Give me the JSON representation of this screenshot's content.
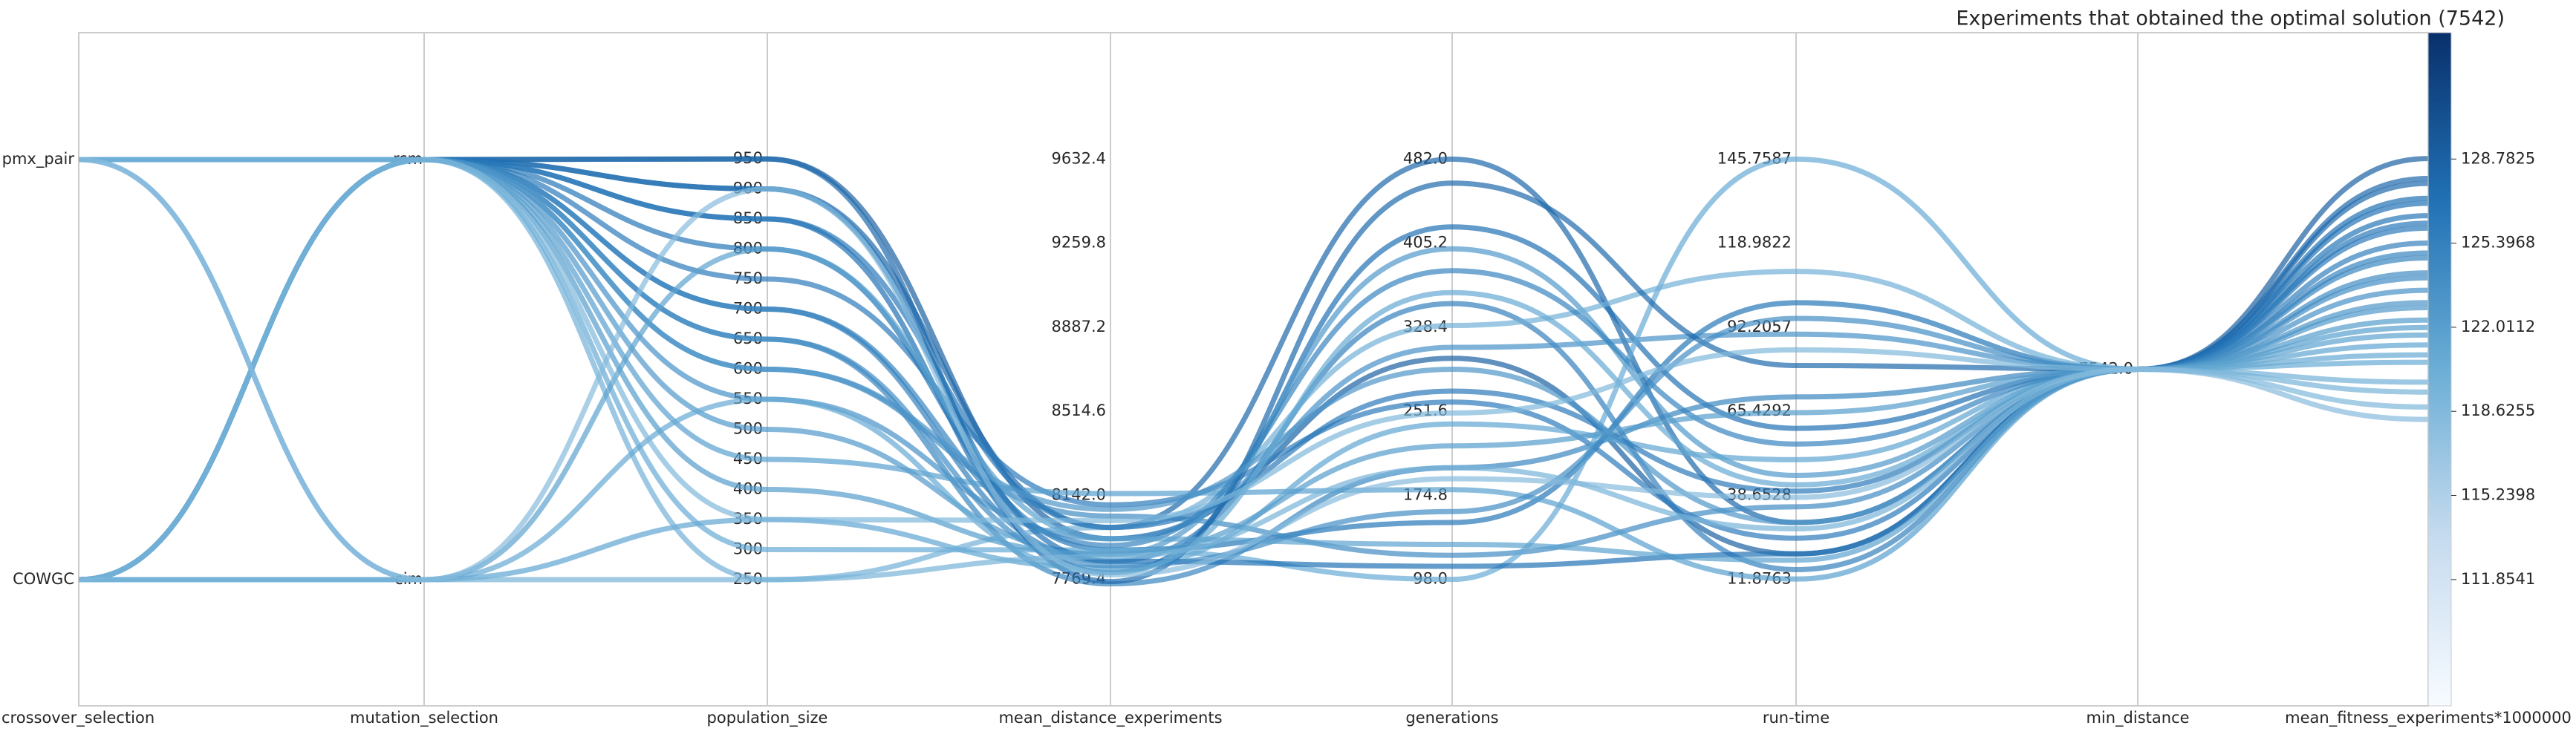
{
  "chart_data": {
    "type": "parallel",
    "title": "Experiments that obtained the optimal solution (7542)",
    "axes": [
      {
        "label": "crossover_selection",
        "categories": [
          "COWGC",
          "pmx_pair"
        ]
      },
      {
        "label": "mutation_selection",
        "categories": [
          "cim",
          "rsm"
        ]
      },
      {
        "label": "population_size",
        "ylim": [
          40,
          1160
        ],
        "yticks": [
          250,
          300,
          350,
          400,
          450,
          500,
          550,
          600,
          650,
          700,
          750,
          800,
          850,
          900,
          950
        ]
      },
      {
        "label": "mean_distance_experiments",
        "ylim": [
          7209.4,
          10192.4
        ],
        "yticks": [
          7769.4,
          {
            "value": 8142,
            "label": "8142.0"
          },
          8514.6,
          8887.2,
          9259.8,
          9632.4
        ]
      },
      {
        "label": "generations",
        "ylim": [
          -17.5,
          597.5
        ],
        "yticks": [
          {
            "value": 98,
            "label": "98.0"
          },
          174.8,
          251.6,
          328.4,
          405.2,
          {
            "value": 482,
            "label": "482.0"
          }
        ]
      },
      {
        "label": "run-time",
        "ylim": [
          -28.39,
          186.03
        ],
        "yticks": [
          11.8763,
          38.6528,
          65.4292,
          92.2057,
          118.9822,
          145.7587
        ]
      },
      {
        "label": "min_distance",
        "ylim": [
          7541,
          7543
        ],
        "yticks": [
          {
            "value": 7542,
            "label": "7542.0"
          }
        ]
      },
      {
        "label": "mean_fitness_experiments*1000000",
        "colorbar": true
      }
    ],
    "colorbar": {
      "ylim": [
        106.77,
        133.87
      ],
      "yticks": [
        111.8541,
        115.2398,
        118.6255,
        122.0112,
        125.3968,
        128.7825
      ],
      "colors": [
        "#f7fbff",
        "#c6dbef",
        "#6baed6",
        "#2171b5",
        "#08306b"
      ]
    },
    "lines": [
      {
        "values": [
          "pmx_pair",
          "rsm",
          950,
          7950,
          300,
          20,
          7542,
          128.8
        ]
      },
      {
        "values": [
          "pmx_pair",
          "rsm",
          900,
          8000,
          482,
          30,
          7542,
          128.0
        ]
      },
      {
        "values": [
          "pmx_pair",
          "rsm",
          850,
          7800,
          420,
          60,
          7542,
          127.2
        ]
      },
      {
        "values": [
          "pmx_pair",
          "rsm",
          800,
          7900,
          150,
          100,
          7542,
          126.5
        ]
      },
      {
        "values": [
          "pmx_pair",
          "rsm",
          750,
          8100,
          260,
          25,
          7542,
          126.0
        ]
      },
      {
        "values": [
          "pmx_pair",
          "rsm",
          700,
          7850,
          350,
          15,
          7542,
          125.4
        ]
      },
      {
        "values": [
          "pmx_pair",
          "rsm",
          650,
          7750,
          200,
          70,
          7542,
          124.8
        ]
      },
      {
        "values": [
          "pmx_pair",
          "rsm",
          600,
          8050,
          120,
          35,
          7542,
          124.2
        ]
      },
      {
        "values": [
          "pmx_pair",
          "rsm",
          550,
          7950,
          310,
          90,
          7542,
          123.5
        ]
      },
      {
        "values": [
          "pmx_pair",
          "rsm",
          500,
          7880,
          400,
          45,
          7542,
          122.8
        ]
      },
      {
        "values": [
          "pmx_pair",
          "rsm",
          450,
          8150,
          180,
          12,
          7542,
          122.0
        ]
      },
      {
        "values": [
          "pmx_pair",
          "cim",
          350,
          7820,
          240,
          50,
          7542,
          121.3
        ]
      },
      {
        "values": [
          "pmx_pair",
          "rsm",
          300,
          7900,
          98,
          145.7587,
          7542,
          120.6
        ]
      },
      {
        "values": [
          "pmx_pair",
          "rsm",
          250,
          8000,
          330,
          110,
          7542,
          119.8
        ]
      },
      {
        "values": [
          "COWGC",
          "rsm",
          950,
          7760,
          460,
          80,
          7542,
          127.8
        ]
      },
      {
        "values": [
          "COWGC",
          "rsm",
          900,
          7850,
          110,
          20,
          7542,
          127.0
        ]
      },
      {
        "values": [
          "COWGC",
          "rsm",
          850,
          8000,
          270,
          40,
          7542,
          126.2
        ]
      },
      {
        "values": [
          "COWGC",
          "rsm",
          700,
          7920,
          380,
          55,
          7542,
          125.0
        ]
      },
      {
        "values": [
          "COWGC",
          "rsm",
          650,
          7830,
          160,
          95,
          7542,
          124.0
        ]
      },
      {
        "values": [
          "COWGC",
          "rsm",
          600,
          8080,
          290,
          30,
          7542,
          123.0
        ]
      },
      {
        "values": [
          "COWGC",
          "rsm",
          400,
          7880,
          220,
          65,
          7542,
          122.3
        ]
      },
      {
        "values": [
          "COWGC",
          "cim",
          800,
          7950,
          130,
          18,
          7542,
          121.7
        ]
      },
      {
        "values": [
          "COWGC",
          "cim",
          550,
          7800,
          360,
          42,
          7542,
          120.9
        ]
      },
      {
        "values": [
          "COWGC",
          "cim",
          250,
          7870,
          200,
          28,
          7542,
          119.4
        ]
      },
      {
        "values": [
          "COWGC",
          "rsm",
          350,
          8030,
          250,
          85,
          7542,
          118.8
        ]
      },
      {
        "values": [
          "pmx_pair",
          "cim",
          900,
          7790,
          190,
          38,
          7542,
          118.3
        ]
      }
    ]
  }
}
